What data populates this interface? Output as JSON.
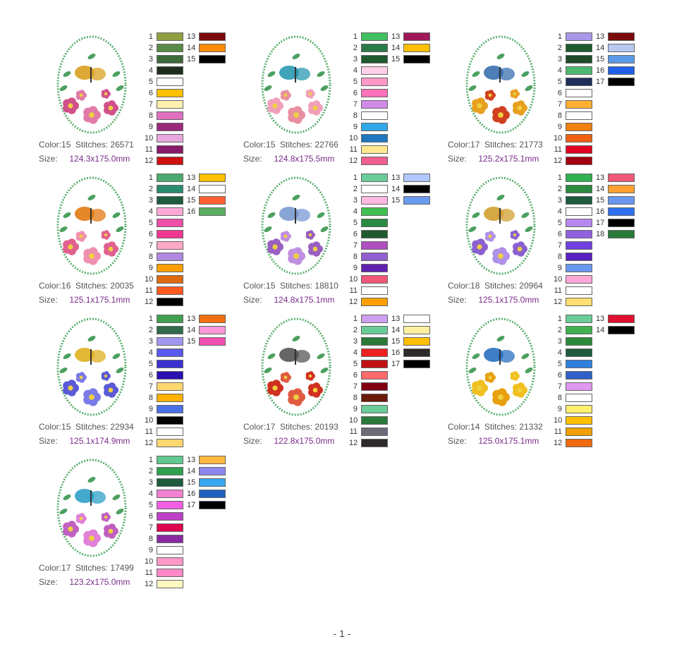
{
  "page_number": "- 1 -",
  "labels": {
    "color": "Color:",
    "stitches": "Stitches:",
    "size": "Size:"
  },
  "designs": [
    {
      "color": "15",
      "stitches": "26571",
      "size": "124.3x175.0mm",
      "motif": "butterfly-roses",
      "accent": "#d9a020",
      "colors": [
        "#8fa040",
        "#5a8a4a",
        "#3e6a3a",
        "#1e2e1e",
        "#ffffff",
        "#ffc000",
        "#fff0b0",
        "#e070c0",
        "#9a2a7a",
        "#e8a8e0",
        "#8a1a6a",
        "#cc1010",
        "#7a0a0a",
        "#ff8c00",
        "#000000"
      ]
    },
    {
      "color": "15",
      "stitches": "22766",
      "size": "124.8x175.5mm",
      "motif": "hummingbird-blossoms",
      "accent": "#2a9ab0",
      "colors": [
        "#40c060",
        "#2a7a4a",
        "#1e5a2e",
        "#ffd0e8",
        "#ff98c8",
        "#ff70b8",
        "#d08ae8",
        "#ffffff",
        "#30a8e8",
        "#1e78c0",
        "#ffe890",
        "#f06090",
        "#a01858",
        "#ffc000",
        "#000000"
      ]
    },
    {
      "color": "17",
      "stitches": "21773",
      "size": "125.2x175.1mm",
      "motif": "bird-sunflowers",
      "accent": "#3a70b0",
      "colors": [
        "#a898ea",
        "#1e5a2e",
        "#1e4a2a",
        "#4cb870",
        "#1e2e5a",
        "#ffffff",
        "#ffb030",
        "#ffffff",
        "#f08010",
        "#f06010",
        "#e00020",
        "#a00010",
        "#7a0a0a",
        "#b8c8f0",
        "#5a9ae8",
        "#2060e8",
        "#000000"
      ]
    },
    {
      "color": "16",
      "stitches": "20035",
      "size": "125.1x175.1mm",
      "motif": "monarch-roses",
      "accent": "#e07a10",
      "colors": [
        "#4caa70",
        "#2a8a70",
        "#1e5a3e",
        "#ffa8d8",
        "#f050a8",
        "#f03890",
        "#ffa8c8",
        "#b088e0",
        "#ffa000",
        "#e06a10",
        "#ff5a20",
        "#000000",
        "#ffc000",
        "#ffffff",
        "#ff6030",
        "#5ab060"
      ]
    },
    {
      "color": "15",
      "stitches": "18810",
      "size": "124.8x175.1mm",
      "motif": "dragonfly-petunias",
      "accent": "#7a9ad0",
      "colors": [
        "#6acc98",
        "#ffffff",
        "#ffb8e0",
        "#40c050",
        "#2a8a40",
        "#1e5a2e",
        "#b050c0",
        "#9060d0",
        "#6020b0",
        "#f05878",
        "#ffffff",
        "#ffa000",
        "#b0c8ff",
        "#000000",
        "#6a9af0"
      ]
    },
    {
      "color": "18",
      "stitches": "20964",
      "size": "125.1x175.0mm",
      "motif": "hummingbird-irises",
      "accent": "#d0a030",
      "colors": [
        "#30b050",
        "#2a8a40",
        "#1e5a3e",
        "#ffffff",
        "#b888f0",
        "#9060e0",
        "#7040e0",
        "#5a20c0",
        "#6a98f0",
        "#ffa8d8",
        "#ffffff",
        "#ffe070",
        "#f05878",
        "#ffa030",
        "#6a98f0",
        "#3070f0",
        "#000000",
        "#2a7a3a"
      ]
    },
    {
      "color": "15",
      "stitches": "22934",
      "size": "125.1x174.9mm",
      "motif": "swallowtail-cornflowers",
      "accent": "#e0b020",
      "colors": [
        "#40a050",
        "#306a4a",
        "#a098f0",
        "#5a5af0",
        "#3a30d0",
        "#2a10b0",
        "#ffd870",
        "#ffb000",
        "#4a70e8",
        "#000000",
        "#ffffff",
        "#ffd870",
        "#f07010",
        "#ff98d8",
        "#f050b0"
      ]
    },
    {
      "color": "17",
      "stitches": "20193",
      "size": "122.8x175.0mm",
      "motif": "chickadee-poppies",
      "accent": "#555555",
      "colors": [
        "#d0a0f0",
        "#6acc98",
        "#2a7a3a",
        "#f02020",
        "#c01010",
        "#ff6a6a",
        "#800010",
        "#6a1a0a",
        "#6acc98",
        "#2a7a3a",
        "#6a6a78",
        "#2e2a2a",
        "#ffffff",
        "#fff0a0",
        "#ffc000",
        "#2e2a2a",
        "#000000"
      ]
    },
    {
      "color": "14",
      "stitches": "21332",
      "size": "125.0x175.1mm",
      "motif": "bluebutterfly-lilies",
      "accent": "#2a70c0",
      "colors": [
        "#6acc98",
        "#40b050",
        "#2a8a3a",
        "#1e5a3e",
        "#3080e0",
        "#3060c8",
        "#e098f0",
        "#ffffff",
        "#fff070",
        "#ffc000",
        "#f0a000",
        "#f06a10",
        "#e01030",
        "#000000"
      ]
    },
    {
      "color": "17",
      "stitches": "17499",
      "size": "123.2x175.0mm",
      "motif": "hummingbird-azaleas",
      "accent": "#30a0c8",
      "colors": [
        "#60c890",
        "#30a050",
        "#1e5a3e",
        "#f080d0",
        "#f060e0",
        "#c040c8",
        "#e00050",
        "#8a2aa0",
        "#ffffff",
        "#ff98c8",
        "#ff88c8",
        "#fff8c0",
        "#ffb840",
        "#8a88f0",
        "#3aa8f0",
        "#2060c0",
        "#000000"
      ]
    }
  ]
}
